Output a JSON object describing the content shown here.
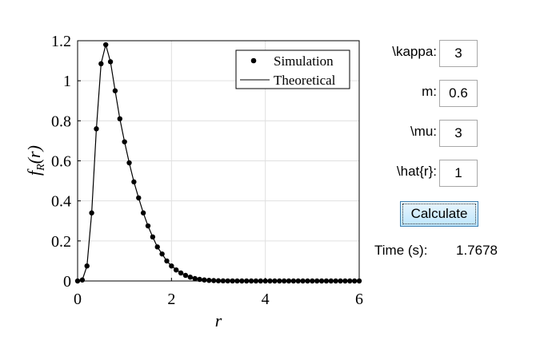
{
  "controls": {
    "kappa": {
      "label": "\\kappa:",
      "value": "3"
    },
    "m": {
      "label": "m:",
      "value": "0.6"
    },
    "mu": {
      "label": "\\mu:",
      "value": "3"
    },
    "rhat": {
      "label": "\\hat{r}:",
      "value": "1"
    },
    "calculate_label": "Calculate",
    "time_label": "Time (s):",
    "time_value": "1.7678"
  },
  "chart_data": {
    "type": "line",
    "xlabel": "r",
    "ylabel": "f_R(r)",
    "xlim": [
      0,
      6
    ],
    "ylim": [
      0,
      1.2
    ],
    "xticks": [
      0,
      2,
      4,
      6
    ],
    "xtick_labels": [
      "0",
      "2",
      "4",
      "6"
    ],
    "yticks": [
      0,
      0.2,
      0.4,
      0.6,
      0.8,
      1,
      1.2
    ],
    "ytick_labels": [
      "0",
      "0.2",
      "0.4",
      "0.6",
      "0.8",
      "1",
      "1.2"
    ],
    "grid": true,
    "legend": {
      "placement": "top-right",
      "entries": [
        {
          "label": "Simulation",
          "marker": "dot"
        },
        {
          "label": "Theoretical",
          "marker": "line"
        }
      ]
    },
    "colors": {
      "series": "#000000",
      "grid": "#e0e0e0",
      "button_border": "#3c7fb1"
    },
    "series": [
      {
        "name": "Simulation",
        "style": "markers",
        "x": [
          0,
          0.1,
          0.2,
          0.3,
          0.4,
          0.5,
          0.6,
          0.7,
          0.8,
          0.9,
          1.0,
          1.1,
          1.2,
          1.3,
          1.4,
          1.5,
          1.6,
          1.7,
          1.8,
          1.9,
          2.0,
          2.1,
          2.2,
          2.3,
          2.4,
          2.5,
          2.6,
          2.7,
          2.8,
          2.9,
          3.0,
          3.1,
          3.2,
          3.3,
          3.4,
          3.5,
          3.6,
          3.7,
          3.8,
          3.9,
          4.0,
          4.1,
          4.2,
          4.3,
          4.4,
          4.5,
          4.6,
          4.7,
          4.8,
          4.9,
          5.0,
          5.1,
          5.2,
          5.3,
          5.4,
          5.5,
          5.6,
          5.7,
          5.8,
          5.9,
          6.0
        ],
        "y": [
          0,
          0.005,
          0.075,
          0.34,
          0.76,
          1.085,
          1.18,
          1.095,
          0.95,
          0.81,
          0.695,
          0.59,
          0.495,
          0.415,
          0.34,
          0.275,
          0.22,
          0.17,
          0.135,
          0.1,
          0.075,
          0.055,
          0.04,
          0.028,
          0.019,
          0.012,
          0.008,
          0.005,
          0.003,
          0.002,
          0.001,
          0.0006,
          0.0003,
          0.0002,
          0.0001,
          0,
          0,
          0,
          0,
          0,
          0,
          0,
          0,
          0,
          0,
          0,
          0,
          0,
          0,
          0,
          0,
          0,
          0,
          0,
          0,
          0,
          0,
          0,
          0,
          0,
          0
        ]
      },
      {
        "name": "Theoretical",
        "style": "line",
        "x": [
          0,
          0.1,
          0.2,
          0.3,
          0.4,
          0.5,
          0.6,
          0.7,
          0.8,
          0.9,
          1.0,
          1.1,
          1.2,
          1.3,
          1.4,
          1.5,
          1.6,
          1.7,
          1.8,
          1.9,
          2.0,
          2.2,
          2.4,
          2.6,
          2.8,
          3.0,
          3.5,
          4.0,
          5.0,
          6.0
        ],
        "y": [
          0,
          0.005,
          0.075,
          0.34,
          0.76,
          1.085,
          1.18,
          1.095,
          0.95,
          0.81,
          0.695,
          0.59,
          0.495,
          0.415,
          0.34,
          0.275,
          0.22,
          0.17,
          0.135,
          0.1,
          0.075,
          0.04,
          0.019,
          0.008,
          0.003,
          0.001,
          0,
          0,
          0,
          0
        ]
      }
    ]
  }
}
